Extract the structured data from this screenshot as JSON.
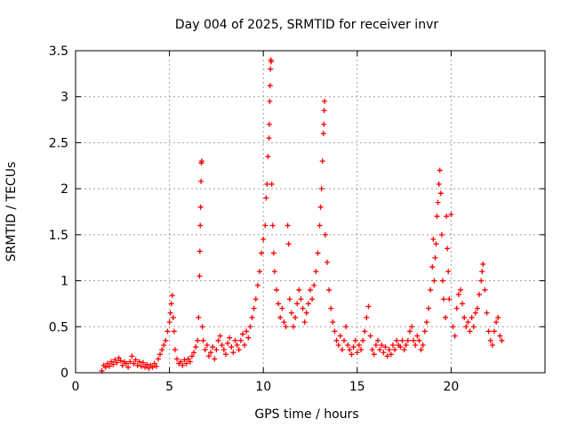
{
  "chart_data": {
    "type": "scatter",
    "title": "Day 004 of 2025, SRMTID for receiver invr",
    "xlabel": "GPS time / hours",
    "ylabel": "SRMTID / TECUs",
    "xlim": [
      0,
      25
    ],
    "ylim": [
      0,
      3.5
    ],
    "xticks": [
      0,
      5,
      10,
      15,
      20
    ],
    "xtick_labels": [
      "0",
      "5",
      "10",
      "15",
      "20"
    ],
    "yticks": [
      0,
      0.5,
      1,
      1.5,
      2,
      2.5,
      3,
      3.5
    ],
    "ytick_labels": [
      "0",
      "0.5",
      "1",
      "1.5",
      "2",
      "2.5",
      "3",
      "3.5"
    ],
    "grid": true,
    "marker": "plus",
    "color": "#ff0000",
    "series": [
      {
        "name": "SRMTID",
        "points": [
          [
            1.4,
            0.02
          ],
          [
            1.5,
            0.08
          ],
          [
            1.6,
            0.06
          ],
          [
            1.7,
            0.1
          ],
          [
            1.8,
            0.07
          ],
          [
            1.9,
            0.12
          ],
          [
            2.0,
            0.09
          ],
          [
            2.1,
            0.14
          ],
          [
            2.2,
            0.11
          ],
          [
            2.3,
            0.16
          ],
          [
            2.4,
            0.13
          ],
          [
            2.5,
            0.08
          ],
          [
            2.6,
            0.12
          ],
          [
            2.7,
            0.1
          ],
          [
            2.8,
            0.06
          ],
          [
            2.9,
            0.12
          ],
          [
            3.0,
            0.18
          ],
          [
            3.1,
            0.1
          ],
          [
            3.2,
            0.14
          ],
          [
            3.3,
            0.08
          ],
          [
            3.4,
            0.12
          ],
          [
            3.5,
            0.07
          ],
          [
            3.6,
            0.11
          ],
          [
            3.7,
            0.06
          ],
          [
            3.8,
            0.09
          ],
          [
            3.9,
            0.05
          ],
          [
            4.0,
            0.08
          ],
          [
            4.1,
            0.06
          ],
          [
            4.2,
            0.1
          ],
          [
            4.3,
            0.07
          ],
          [
            4.4,
            0.15
          ],
          [
            4.5,
            0.2
          ],
          [
            4.6,
            0.25
          ],
          [
            4.7,
            0.3
          ],
          [
            4.8,
            0.35
          ],
          [
            4.9,
            0.45
          ],
          [
            5.0,
            0.55
          ],
          [
            5.05,
            0.65
          ],
          [
            5.1,
            0.75
          ],
          [
            5.15,
            0.84
          ],
          [
            5.2,
            0.6
          ],
          [
            5.25,
            0.45
          ],
          [
            5.3,
            0.25
          ],
          [
            5.4,
            0.15
          ],
          [
            5.5,
            0.1
          ],
          [
            5.6,
            0.12
          ],
          [
            5.7,
            0.08
          ],
          [
            5.8,
            0.14
          ],
          [
            5.9,
            0.1
          ],
          [
            6.0,
            0.15
          ],
          [
            6.1,
            0.12
          ],
          [
            6.2,
            0.18
          ],
          [
            6.3,
            0.22
          ],
          [
            6.4,
            0.28
          ],
          [
            6.5,
            0.35
          ],
          [
            6.55,
            0.6
          ],
          [
            6.6,
            1.05
          ],
          [
            6.62,
            1.32
          ],
          [
            6.64,
            1.6
          ],
          [
            6.66,
            1.8
          ],
          [
            6.68,
            2.08
          ],
          [
            6.7,
            2.28
          ],
          [
            6.72,
            2.3
          ],
          [
            6.75,
            0.5
          ],
          [
            6.8,
            0.35
          ],
          [
            6.9,
            0.25
          ],
          [
            7.0,
            0.3
          ],
          [
            7.1,
            0.18
          ],
          [
            7.2,
            0.22
          ],
          [
            7.3,
            0.28
          ],
          [
            7.4,
            0.15
          ],
          [
            7.5,
            0.25
          ],
          [
            7.6,
            0.35
          ],
          [
            7.7,
            0.4
          ],
          [
            7.8,
            0.3
          ],
          [
            7.9,
            0.25
          ],
          [
            8.0,
            0.2
          ],
          [
            8.1,
            0.32
          ],
          [
            8.2,
            0.38
          ],
          [
            8.3,
            0.28
          ],
          [
            8.4,
            0.22
          ],
          [
            8.5,
            0.35
          ],
          [
            8.6,
            0.3
          ],
          [
            8.7,
            0.25
          ],
          [
            8.8,
            0.35
          ],
          [
            8.9,
            0.42
          ],
          [
            9.0,
            0.3
          ],
          [
            9.1,
            0.45
          ],
          [
            9.2,
            0.38
          ],
          [
            9.3,
            0.5
          ],
          [
            9.4,
            0.6
          ],
          [
            9.5,
            0.7
          ],
          [
            9.6,
            0.8
          ],
          [
            9.7,
            0.95
          ],
          [
            9.8,
            1.1
          ],
          [
            9.9,
            1.3
          ],
          [
            10.0,
            1.45
          ],
          [
            10.1,
            1.6
          ],
          [
            10.15,
            1.9
          ],
          [
            10.2,
            2.05
          ],
          [
            10.25,
            2.35
          ],
          [
            10.3,
            2.55
          ],
          [
            10.32,
            2.7
          ],
          [
            10.34,
            2.95
          ],
          [
            10.36,
            3.12
          ],
          [
            10.38,
            3.3
          ],
          [
            10.4,
            3.4
          ],
          [
            10.42,
            3.38
          ],
          [
            10.45,
            2.05
          ],
          [
            10.5,
            1.6
          ],
          [
            10.55,
            1.3
          ],
          [
            10.6,
            1.1
          ],
          [
            10.7,
            0.9
          ],
          [
            10.8,
            0.75
          ],
          [
            10.9,
            0.6
          ],
          [
            11.0,
            0.7
          ],
          [
            11.1,
            0.55
          ],
          [
            11.2,
            0.5
          ],
          [
            11.3,
            1.6
          ],
          [
            11.35,
            1.4
          ],
          [
            11.4,
            0.8
          ],
          [
            11.5,
            0.65
          ],
          [
            11.6,
            0.5
          ],
          [
            11.7,
            0.6
          ],
          [
            11.8,
            0.75
          ],
          [
            11.9,
            0.9
          ],
          [
            12.0,
            0.8
          ],
          [
            12.1,
            0.7
          ],
          [
            12.2,
            0.55
          ],
          [
            12.3,
            0.65
          ],
          [
            12.4,
            0.75
          ],
          [
            12.5,
            0.9
          ],
          [
            12.6,
            0.8
          ],
          [
            12.7,
            0.95
          ],
          [
            12.8,
            1.1
          ],
          [
            12.9,
            1.3
          ],
          [
            13.0,
            1.6
          ],
          [
            13.05,
            1.8
          ],
          [
            13.1,
            2.0
          ],
          [
            13.15,
            2.3
          ],
          [
            13.2,
            2.6
          ],
          [
            13.22,
            2.7
          ],
          [
            13.24,
            2.85
          ],
          [
            13.26,
            2.95
          ],
          [
            13.3,
            1.5
          ],
          [
            13.4,
            1.2
          ],
          [
            13.5,
            0.9
          ],
          [
            13.6,
            0.7
          ],
          [
            13.7,
            0.55
          ],
          [
            13.8,
            0.45
          ],
          [
            13.9,
            0.35
          ],
          [
            14.0,
            0.3
          ],
          [
            14.1,
            0.4
          ],
          [
            14.2,
            0.25
          ],
          [
            14.3,
            0.35
          ],
          [
            14.4,
            0.5
          ],
          [
            14.5,
            0.3
          ],
          [
            14.6,
            0.25
          ],
          [
            14.7,
            0.2
          ],
          [
            14.8,
            0.28
          ],
          [
            14.9,
            0.35
          ],
          [
            15.0,
            0.22
          ],
          [
            15.1,
            0.3
          ],
          [
            15.2,
            0.25
          ],
          [
            15.3,
            0.35
          ],
          [
            15.4,
            0.45
          ],
          [
            15.5,
            0.6
          ],
          [
            15.6,
            0.72
          ],
          [
            15.7,
            0.4
          ],
          [
            15.8,
            0.25
          ],
          [
            15.9,
            0.2
          ],
          [
            16.0,
            0.3
          ],
          [
            16.1,
            0.35
          ],
          [
            16.2,
            0.25
          ],
          [
            16.3,
            0.3
          ],
          [
            16.4,
            0.22
          ],
          [
            16.5,
            0.28
          ],
          [
            16.6,
            0.18
          ],
          [
            16.7,
            0.25
          ],
          [
            16.8,
            0.2
          ],
          [
            16.9,
            0.3
          ],
          [
            17.0,
            0.25
          ],
          [
            17.1,
            0.35
          ],
          [
            17.2,
            0.3
          ],
          [
            17.3,
            0.28
          ],
          [
            17.4,
            0.35
          ],
          [
            17.5,
            0.25
          ],
          [
            17.6,
            0.3
          ],
          [
            17.7,
            0.35
          ],
          [
            17.8,
            0.45
          ],
          [
            17.9,
            0.5
          ],
          [
            18.0,
            0.35
          ],
          [
            18.1,
            0.3
          ],
          [
            18.2,
            0.4
          ],
          [
            18.3,
            0.35
          ],
          [
            18.4,
            0.25
          ],
          [
            18.5,
            0.3
          ],
          [
            18.6,
            0.45
          ],
          [
            18.7,
            0.55
          ],
          [
            18.8,
            0.7
          ],
          [
            18.9,
            0.9
          ],
          [
            19.0,
            1.15
          ],
          [
            19.05,
            1.45
          ],
          [
            19.1,
            1.0
          ],
          [
            19.15,
            1.25
          ],
          [
            19.2,
            1.4
          ],
          [
            19.25,
            1.7
          ],
          [
            19.3,
            1.85
          ],
          [
            19.35,
            2.05
          ],
          [
            19.4,
            2.2
          ],
          [
            19.45,
            1.95
          ],
          [
            19.5,
            1.5
          ],
          [
            19.55,
            1.0
          ],
          [
            19.6,
            0.8
          ],
          [
            19.7,
            0.6
          ],
          [
            19.75,
            1.7
          ],
          [
            19.8,
            1.35
          ],
          [
            19.85,
            1.1
          ],
          [
            19.9,
            0.8
          ],
          [
            20.0,
            1.72
          ],
          [
            20.1,
            0.5
          ],
          [
            20.2,
            0.4
          ],
          [
            20.3,
            0.7
          ],
          [
            20.4,
            0.85
          ],
          [
            20.5,
            0.9
          ],
          [
            20.6,
            0.75
          ],
          [
            20.7,
            0.6
          ],
          [
            20.8,
            0.5
          ],
          [
            20.9,
            0.55
          ],
          [
            21.0,
            0.45
          ],
          [
            21.1,
            0.6
          ],
          [
            21.2,
            0.5
          ],
          [
            21.3,
            0.65
          ],
          [
            21.4,
            0.7
          ],
          [
            21.5,
            0.85
          ],
          [
            21.6,
            1.0
          ],
          [
            21.65,
            1.1
          ],
          [
            21.7,
            1.18
          ],
          [
            21.8,
            0.9
          ],
          [
            21.9,
            0.65
          ],
          [
            22.0,
            0.45
          ],
          [
            22.1,
            0.35
          ],
          [
            22.2,
            0.3
          ],
          [
            22.3,
            0.45
          ],
          [
            22.4,
            0.55
          ],
          [
            22.5,
            0.6
          ],
          [
            22.6,
            0.4
          ],
          [
            22.7,
            0.35
          ]
        ]
      }
    ]
  }
}
